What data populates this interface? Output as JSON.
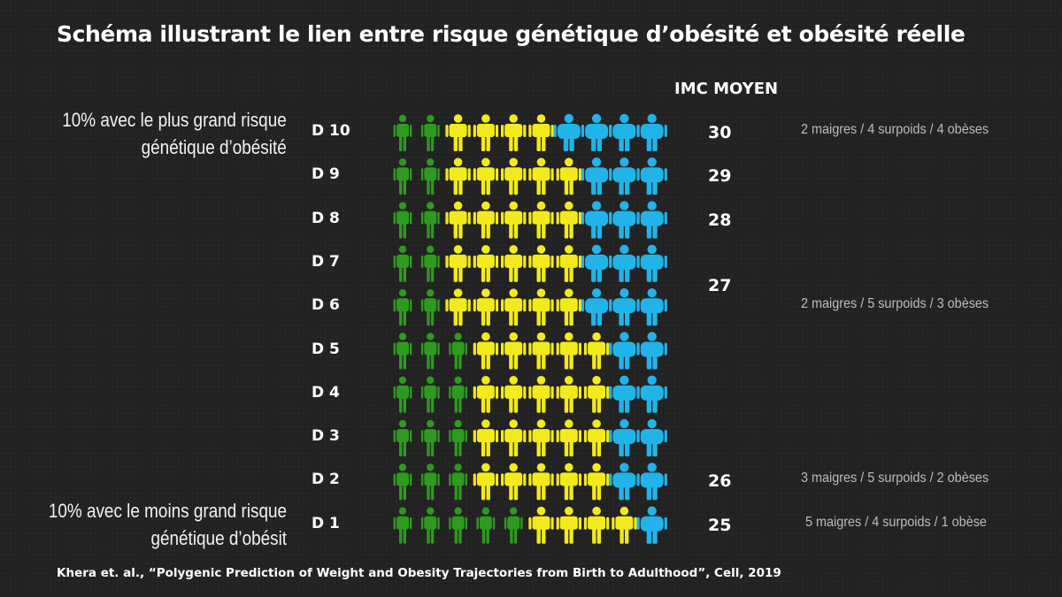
{
  "title": "Schéma illustrant le lien entre risque génétique d’obésité et obésité réelle",
  "imc_header": "IMC MOYEN",
  "top_label": [
    "10% avec le plus grand risque",
    "génétique d’obésité"
  ],
  "bottom_label": [
    "10% avec le moins grand risque",
    "génétique d’obésit"
  ],
  "colors": {
    "maigre": "#2e9a1f",
    "surpoids": "#f2ea1c",
    "obese": "#22b3e8"
  },
  "icon": "person-icon",
  "rows": [
    {
      "decile": "D 10",
      "composition": [
        "maigre",
        "maigre",
        "surpoids",
        "surpoids",
        "surpoids",
        "surpoids",
        "obese",
        "obese",
        "obese",
        "obese"
      ]
    },
    {
      "decile": "D 9",
      "composition": [
        "maigre",
        "maigre",
        "surpoids",
        "surpoids",
        "surpoids",
        "surpoids",
        "surpoids",
        "obese",
        "obese",
        "obese"
      ]
    },
    {
      "decile": "D 8",
      "composition": [
        "maigre",
        "maigre",
        "surpoids",
        "surpoids",
        "surpoids",
        "surpoids",
        "surpoids",
        "obese",
        "obese",
        "obese"
      ]
    },
    {
      "decile": "D 7",
      "composition": [
        "maigre",
        "maigre",
        "surpoids",
        "surpoids",
        "surpoids",
        "surpoids",
        "surpoids",
        "obese",
        "obese",
        "obese"
      ]
    },
    {
      "decile": "D 6",
      "composition": [
        "maigre",
        "maigre",
        "surpoids",
        "surpoids",
        "surpoids",
        "surpoids",
        "surpoids",
        "obese",
        "obese",
        "obese"
      ]
    },
    {
      "decile": "D 5",
      "composition": [
        "maigre",
        "maigre",
        "maigre",
        "surpoids",
        "surpoids",
        "surpoids",
        "surpoids",
        "surpoids",
        "obese",
        "obese"
      ]
    },
    {
      "decile": "D 4",
      "composition": [
        "maigre",
        "maigre",
        "maigre",
        "surpoids",
        "surpoids",
        "surpoids",
        "surpoids",
        "surpoids",
        "obese",
        "obese"
      ]
    },
    {
      "decile": "D 3",
      "composition": [
        "maigre",
        "maigre",
        "maigre",
        "surpoids",
        "surpoids",
        "surpoids",
        "surpoids",
        "surpoids",
        "obese",
        "obese"
      ]
    },
    {
      "decile": "D 2",
      "composition": [
        "maigre",
        "maigre",
        "maigre",
        "surpoids",
        "surpoids",
        "surpoids",
        "surpoids",
        "surpoids",
        "obese",
        "obese"
      ]
    },
    {
      "decile": "D  1",
      "composition": [
        "maigre",
        "maigre",
        "maigre",
        "maigre",
        "maigre",
        "surpoids",
        "surpoids",
        "surpoids",
        "surpoids",
        "obese"
      ]
    }
  ],
  "imc_values": [
    {
      "value": "30",
      "row": 0
    },
    {
      "value": "29",
      "row": 1
    },
    {
      "value": "28",
      "row": 2
    },
    {
      "value": "27",
      "row": 3.5
    },
    {
      "value": "26",
      "row": 8
    },
    {
      "value": "25",
      "row": 9
    }
  ],
  "notes": [
    {
      "text": "2 maigres / 4 surpoids / 4 obèses",
      "row": 0
    },
    {
      "text": "2 maigres / 5 surpoids / 3 obèses",
      "row": 4
    },
    {
      "text": "3 maigres / 5 surpoids / 2 obèses",
      "row": 8
    },
    {
      "text": "5 maigres / 4 surpoids / 1 obèse",
      "row": 9
    }
  ],
  "citation": "Khera et. al., “Polygenic Prediction of Weight and Obesity Trajectories from Birth to Adulthood”, Cell, 2019"
}
